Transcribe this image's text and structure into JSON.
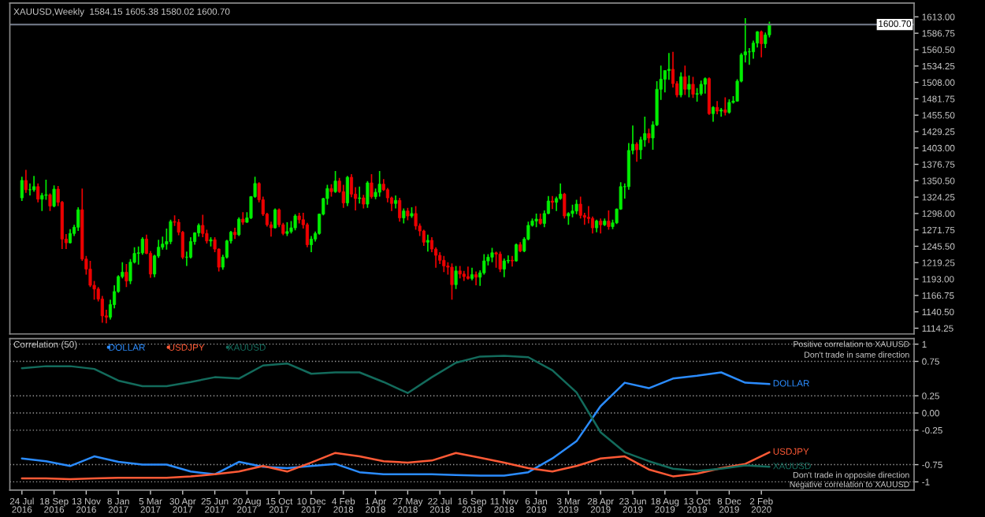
{
  "chart_data": [
    {
      "type": "candlestick",
      "title": "XAUUSD,Weekly  1584.15 1605.38 1580.02 1600.70",
      "colors": [
        "#00ee00",
        "#ee0000",
        "#00ee00",
        "#00ee00",
        "#ee0000",
        "#00ee00",
        "#00ee00",
        "#ee0000",
        "#00ee00",
        "#ee0000",
        "#ee0000",
        "#ee0000",
        "#00ee00",
        "#00ee00",
        "#00ee00",
        "#ee0000",
        "#ee0000",
        "#ee0000",
        "#ee0000",
        "#ee0000",
        "#ee0000",
        "#ee0000",
        "#00ee00",
        "#00ee00",
        "#00ee00",
        "#00ee00",
        "#ee0000",
        "#00ee00",
        "#00ee00",
        "#00ee00",
        "#00ee00",
        "#ee0000",
        "#ee0000",
        "#00ee00",
        "#00ee00",
        "#00ee00",
        "#00ee00",
        "#00ee00",
        "#ee0000",
        "#ee0000",
        "#ee0000",
        "#00ee00",
        "#00ee00",
        "#00ee00",
        "#00ee00",
        "#ee0000",
        "#ee0000",
        "#00ee00",
        "#ee0000",
        "#ee0000",
        "#00ee00",
        "#00ee00",
        "#00ee00",
        "#ee0000",
        "#00ee00",
        "#ee0000",
        "#00ee00",
        "#00ee00",
        "#00ee00",
        "#ee0000",
        "#ee0000",
        "#ee0000",
        "#ee0000",
        "#00ee00",
        "#ee0000",
        "#ee0000",
        "#00ee00",
        "#00ee00",
        "#00ee00",
        "#ee0000",
        "#ee0000",
        "#ee0000",
        "#00ee00",
        "#00ee00",
        "#00ee00",
        "#00ee00",
        "#00ee00",
        "#ee0000",
        "#00ee00",
        "#ee0000",
        "#ee0000",
        "#00ee00",
        "#ee0000",
        "#ee0000",
        "#00ee00",
        "#ee0000",
        "#00ee00",
        "#ee0000",
        "#00ee00",
        "#00ee00",
        "#ee0000",
        "#ee0000",
        "#ee0000",
        "#00ee00",
        "#ee0000",
        "#00ee00",
        "#ee0000",
        "#00ee00",
        "#ee0000",
        "#ee0000",
        "#ee0000",
        "#00ee00",
        "#ee0000",
        "#ee0000",
        "#ee0000",
        "#ee0000",
        "#ee0000",
        "#ee0000",
        "#00ee00",
        "#ee0000",
        "#ee0000",
        "#ee0000",
        "#00ee00",
        "#ee0000",
        "#00ee00",
        "#00ee00",
        "#00ee00",
        "#00ee00",
        "#ee0000",
        "#ee0000",
        "#00ee00",
        "#00ee00",
        "#ee0000",
        "#00ee00",
        "#ee0000",
        "#00ee00",
        "#00ee00",
        "#00ee00",
        "#00ee00",
        "#ee0000",
        "#00ee00",
        "#00ee00",
        "#ee0000",
        "#00ee00",
        "#00ee00",
        "#ee0000",
        "#00ee00",
        "#00ee00",
        "#00ee00",
        "#ee0000",
        "#ee0000",
        "#ee0000",
        "#ee0000",
        "#00ee00",
        "#ee0000",
        "#00ee00",
        "#ee0000",
        "#00ee00",
        "#00ee00",
        "#00ee00",
        "#00ee00",
        "#00ee00",
        "#00ee00",
        "#ee0000",
        "#00ee00",
        "#00ee00",
        "#ee0000",
        "#00ee00",
        "#00ee00",
        "#00ee00",
        "#00ee00",
        "#00ee00",
        "#ee0000",
        "#ee0000",
        "#00ee00",
        "#ee0000",
        "#00ee00",
        "#ee0000",
        "#00ee00",
        "#00ee00",
        "#00ee00",
        "#ee0000",
        "#00ee00",
        "#ee0000",
        "#00ee00",
        "#ee0000",
        "#00ee00",
        "#00ee00",
        "#00ee00",
        "#00ee00",
        "#00ee00",
        "#00ee00",
        "#00ee00",
        "#00ee00",
        "#ee0000",
        "#00ee00",
        "#00ee00"
      ],
      "xlim": [
        "2016-07-03",
        "2020-10-25"
      ],
      "ylim": [
        1105,
        1635
      ],
      "yticks": [
        {
          "value": 1613,
          "label": "1613.00"
        },
        {
          "value": 1586.75,
          "label": "1586.75"
        },
        {
          "value": 1560.5,
          "label": "1560.50"
        },
        {
          "value": 1534.25,
          "label": "1534.25"
        },
        {
          "value": 1508,
          "label": "1508.00"
        },
        {
          "value": 1481.75,
          "label": "1481.75"
        },
        {
          "value": 1455.5,
          "label": "1455.50"
        },
        {
          "value": 1429.25,
          "label": "1429.25"
        },
        {
          "value": 1403,
          "label": "1403.00"
        },
        {
          "value": 1376.75,
          "label": "1376.75"
        },
        {
          "value": 1350.5,
          "label": "1350.50"
        },
        {
          "value": 1324.25,
          "label": "1324.25"
        },
        {
          "value": 1298,
          "label": "1298.00"
        },
        {
          "value": 1271.75,
          "label": "1271.75"
        },
        {
          "value": 1245.5,
          "label": "1245.50"
        },
        {
          "value": 1219.25,
          "label": "1219.25"
        },
        {
          "value": 1193,
          "label": "1193.00"
        },
        {
          "value": 1166.75,
          "label": "1166.75"
        },
        {
          "value": 1140.5,
          "label": "1140.50"
        },
        {
          "value": 1114.25,
          "label": "1114.25"
        }
      ],
      "tick_labels": "y",
      "grid": false,
      "ref_lines": [
        {
          "axis": "y",
          "value": 1600.7,
          "label": "1600.70",
          "color": "#6b7280"
        }
      ],
      "x": [
        "2016-07-24",
        "2016-07-31",
        "2016-08-07",
        "2016-08-14",
        "2016-08-21",
        "2016-08-28",
        "2016-09-04",
        "2016-09-11",
        "2016-09-18",
        "2016-09-25",
        "2016-10-02",
        "2016-10-09",
        "2016-10-16",
        "2016-10-23",
        "2016-10-30",
        "2016-11-06",
        "2016-11-13",
        "2016-11-20",
        "2016-11-27",
        "2016-12-04",
        "2016-12-11",
        "2016-12-18",
        "2016-12-25",
        "2017-01-01",
        "2017-01-08",
        "2017-01-15",
        "2017-01-22",
        "2017-01-29",
        "2017-02-05",
        "2017-02-12",
        "2017-02-19",
        "2017-02-26",
        "2017-03-05",
        "2017-03-12",
        "2017-03-19",
        "2017-03-26",
        "2017-04-02",
        "2017-04-09",
        "2017-04-16",
        "2017-04-23",
        "2017-04-30",
        "2017-05-07",
        "2017-05-14",
        "2017-05-21",
        "2017-05-28",
        "2017-06-04",
        "2017-06-11",
        "2017-06-18",
        "2017-06-25",
        "2017-07-02",
        "2017-07-09",
        "2017-07-16",
        "2017-07-23",
        "2017-07-30",
        "2017-08-06",
        "2017-08-13",
        "2017-08-20",
        "2017-08-27",
        "2017-09-03",
        "2017-09-10",
        "2017-09-17",
        "2017-09-24",
        "2017-10-01",
        "2017-10-08",
        "2017-10-15",
        "2017-10-22",
        "2017-10-29",
        "2017-11-05",
        "2017-11-12",
        "2017-11-19",
        "2017-11-26",
        "2017-12-03",
        "2017-12-10",
        "2017-12-17",
        "2017-12-24",
        "2017-12-31",
        "2018-01-07",
        "2018-01-14",
        "2018-01-21",
        "2018-01-28",
        "2018-02-04",
        "2018-02-11",
        "2018-02-18",
        "2018-02-25",
        "2018-03-04",
        "2018-03-11",
        "2018-03-18",
        "2018-03-25",
        "2018-04-01",
        "2018-04-08",
        "2018-04-15",
        "2018-04-22",
        "2018-04-29",
        "2018-05-06",
        "2018-05-13",
        "2018-05-20",
        "2018-05-27",
        "2018-06-03",
        "2018-06-10",
        "2018-06-17",
        "2018-06-24",
        "2018-07-01",
        "2018-07-08",
        "2018-07-15",
        "2018-07-22",
        "2018-07-29",
        "2018-08-05",
        "2018-08-12",
        "2018-08-19",
        "2018-08-26",
        "2018-09-02",
        "2018-09-09",
        "2018-09-16",
        "2018-09-23",
        "2018-09-30",
        "2018-10-07",
        "2018-10-14",
        "2018-10-21",
        "2018-10-28",
        "2018-11-04",
        "2018-11-11",
        "2018-11-18",
        "2018-11-25",
        "2018-12-02",
        "2018-12-09",
        "2018-12-16",
        "2018-12-23",
        "2018-12-30",
        "2019-01-06",
        "2019-01-13",
        "2019-01-20",
        "2019-01-27",
        "2019-02-03",
        "2019-02-10",
        "2019-02-17",
        "2019-02-24",
        "2019-03-03",
        "2019-03-10",
        "2019-03-17",
        "2019-03-24",
        "2019-03-31",
        "2019-04-07",
        "2019-04-14",
        "2019-04-21",
        "2019-04-28",
        "2019-05-05",
        "2019-05-12",
        "2019-05-19",
        "2019-05-26",
        "2019-06-02",
        "2019-06-09",
        "2019-06-16",
        "2019-06-23",
        "2019-06-30",
        "2019-07-07",
        "2019-07-14",
        "2019-07-21",
        "2019-07-28",
        "2019-08-04",
        "2019-08-11",
        "2019-08-18",
        "2019-08-25",
        "2019-09-01",
        "2019-09-08",
        "2019-09-15",
        "2019-09-22",
        "2019-09-29",
        "2019-10-06",
        "2019-10-13",
        "2019-10-20",
        "2019-10-27",
        "2019-11-03",
        "2019-11-10",
        "2019-11-17",
        "2019-11-24",
        "2019-12-01",
        "2019-12-08",
        "2019-12-15",
        "2019-12-22",
        "2019-12-29",
        "2020-01-05",
        "2020-01-12",
        "2020-01-19",
        "2020-01-26",
        "2020-02-02",
        "2020-02-09",
        "2020-02-16"
      ],
      "ohlc": [
        [
          1323,
          1357,
          1318,
          1351
        ],
        [
          1351,
          1368,
          1331,
          1336
        ],
        [
          1336,
          1346,
          1327,
          1336
        ],
        [
          1336,
          1358,
          1333,
          1341
        ],
        [
          1341,
          1346,
          1316,
          1321
        ],
        [
          1321,
          1331,
          1302,
          1327
        ],
        [
          1327,
          1352,
          1320,
          1328
        ],
        [
          1328,
          1330,
          1302,
          1310
        ],
        [
          1310,
          1343,
          1308,
          1337
        ],
        [
          1337,
          1342,
          1310,
          1316
        ],
        [
          1316,
          1318,
          1241,
          1257
        ],
        [
          1257,
          1265,
          1241,
          1251
        ],
        [
          1251,
          1273,
          1250,
          1266
        ],
        [
          1266,
          1280,
          1262,
          1276
        ],
        [
          1276,
          1308,
          1270,
          1304
        ],
        [
          1304,
          1338,
          1222,
          1225
        ],
        [
          1225,
          1230,
          1200,
          1209
        ],
        [
          1209,
          1222,
          1180,
          1183
        ],
        [
          1183,
          1190,
          1160,
          1177
        ],
        [
          1177,
          1180,
          1157,
          1161
        ],
        [
          1161,
          1166,
          1123,
          1134
        ],
        [
          1134,
          1144,
          1122,
          1132
        ],
        [
          1132,
          1160,
          1128,
          1152
        ],
        [
          1152,
          1183,
          1146,
          1173
        ],
        [
          1173,
          1199,
          1171,
          1197
        ],
        [
          1197,
          1220,
          1194,
          1204
        ],
        [
          1204,
          1217,
          1180,
          1190
        ],
        [
          1190,
          1225,
          1185,
          1220
        ],
        [
          1220,
          1244,
          1218,
          1234
        ],
        [
          1234,
          1245,
          1216,
          1235
        ],
        [
          1235,
          1260,
          1232,
          1257
        ],
        [
          1257,
          1264,
          1233,
          1234
        ],
        [
          1234,
          1238,
          1195,
          1201
        ],
        [
          1201,
          1232,
          1196,
          1230
        ],
        [
          1230,
          1256,
          1227,
          1244
        ],
        [
          1244,
          1261,
          1240,
          1249
        ],
        [
          1249,
          1274,
          1240,
          1253
        ],
        [
          1253,
          1288,
          1249,
          1285
        ],
        [
          1285,
          1295,
          1278,
          1284
        ],
        [
          1284,
          1289,
          1263,
          1268
        ],
        [
          1268,
          1270,
          1225,
          1228
        ],
        [
          1228,
          1237,
          1214,
          1228
        ],
        [
          1228,
          1260,
          1226,
          1253
        ],
        [
          1253,
          1268,
          1248,
          1267
        ],
        [
          1267,
          1282,
          1261,
          1279
        ],
        [
          1279,
          1296,
          1260,
          1266
        ],
        [
          1266,
          1272,
          1250,
          1254
        ],
        [
          1254,
          1260,
          1245,
          1256
        ],
        [
          1256,
          1260,
          1236,
          1241
        ],
        [
          1241,
          1242,
          1205,
          1212
        ],
        [
          1212,
          1232,
          1208,
          1228
        ],
        [
          1228,
          1256,
          1226,
          1254
        ],
        [
          1254,
          1270,
          1250,
          1268
        ],
        [
          1268,
          1275,
          1257,
          1264
        ],
        [
          1264,
          1292,
          1262,
          1289
        ],
        [
          1289,
          1300,
          1280,
          1284
        ],
        [
          1284,
          1300,
          1283,
          1291
        ],
        [
          1291,
          1326,
          1289,
          1325
        ],
        [
          1325,
          1357,
          1323,
          1346
        ],
        [
          1346,
          1348,
          1316,
          1320
        ],
        [
          1320,
          1325,
          1294,
          1297
        ],
        [
          1297,
          1299,
          1277,
          1280
        ],
        [
          1280,
          1285,
          1261,
          1275
        ],
        [
          1275,
          1306,
          1274,
          1304
        ],
        [
          1304,
          1306,
          1276,
          1280
        ],
        [
          1280,
          1283,
          1263,
          1266
        ],
        [
          1266,
          1284,
          1262,
          1269
        ],
        [
          1269,
          1286,
          1266,
          1275
        ],
        [
          1275,
          1297,
          1271,
          1294
        ],
        [
          1294,
          1299,
          1282,
          1288
        ],
        [
          1288,
          1299,
          1274,
          1280
        ],
        [
          1280,
          1283,
          1244,
          1248
        ],
        [
          1248,
          1262,
          1236,
          1257
        ],
        [
          1257,
          1269,
          1253,
          1266
        ],
        [
          1266,
          1298,
          1264,
          1297
        ],
        [
          1297,
          1323,
          1295,
          1322
        ],
        [
          1322,
          1344,
          1312,
          1338
        ],
        [
          1338,
          1345,
          1325,
          1333
        ],
        [
          1333,
          1366,
          1331,
          1350
        ],
        [
          1350,
          1355,
          1331,
          1333
        ],
        [
          1333,
          1344,
          1307,
          1315
        ],
        [
          1315,
          1358,
          1310,
          1356
        ],
        [
          1356,
          1361,
          1324,
          1329
        ],
        [
          1329,
          1340,
          1303,
          1322
        ],
        [
          1322,
          1341,
          1314,
          1323
        ],
        [
          1323,
          1328,
          1306,
          1313
        ],
        [
          1313,
          1350,
          1307,
          1347
        ],
        [
          1347,
          1361,
          1322,
          1325
        ],
        [
          1325,
          1338,
          1321,
          1332
        ],
        [
          1332,
          1366,
          1325,
          1345
        ],
        [
          1345,
          1353,
          1334,
          1336
        ],
        [
          1336,
          1339,
          1316,
          1323
        ],
        [
          1323,
          1325,
          1302,
          1314
        ],
        [
          1314,
          1327,
          1306,
          1319
        ],
        [
          1319,
          1323,
          1285,
          1291
        ],
        [
          1291,
          1306,
          1282,
          1302
        ],
        [
          1302,
          1307,
          1287,
          1294
        ],
        [
          1294,
          1308,
          1291,
          1298
        ],
        [
          1298,
          1310,
          1272,
          1278
        ],
        [
          1278,
          1282,
          1262,
          1270
        ],
        [
          1270,
          1272,
          1246,
          1252
        ],
        [
          1252,
          1264,
          1237,
          1255
        ],
        [
          1255,
          1260,
          1236,
          1241
        ],
        [
          1241,
          1244,
          1211,
          1231
        ],
        [
          1231,
          1236,
          1217,
          1223
        ],
        [
          1223,
          1230,
          1204,
          1214
        ],
        [
          1214,
          1220,
          1200,
          1212
        ],
        [
          1212,
          1218,
          1160,
          1184
        ],
        [
          1184,
          1214,
          1177,
          1206
        ],
        [
          1206,
          1214,
          1194,
          1201
        ],
        [
          1201,
          1206,
          1190,
          1197
        ],
        [
          1197,
          1213,
          1192,
          1194
        ],
        [
          1194,
          1211,
          1191,
          1200
        ],
        [
          1200,
          1205,
          1183,
          1196
        ],
        [
          1196,
          1207,
          1182,
          1203
        ],
        [
          1203,
          1233,
          1200,
          1222
        ],
        [
          1222,
          1233,
          1215,
          1228
        ],
        [
          1228,
          1243,
          1220,
          1235
        ],
        [
          1235,
          1237,
          1211,
          1233
        ],
        [
          1233,
          1237,
          1204,
          1209
        ],
        [
          1209,
          1226,
          1196,
          1222
        ],
        [
          1222,
          1231,
          1218,
          1223
        ],
        [
          1223,
          1230,
          1213,
          1222
        ],
        [
          1222,
          1250,
          1221,
          1248
        ],
        [
          1248,
          1252,
          1236,
          1238
        ],
        [
          1238,
          1260,
          1236,
          1257
        ],
        [
          1257,
          1285,
          1255,
          1279
        ],
        [
          1279,
          1290,
          1277,
          1286
        ],
        [
          1286,
          1298,
          1276,
          1289
        ],
        [
          1289,
          1298,
          1280,
          1282
        ],
        [
          1282,
          1303,
          1276,
          1298
        ],
        [
          1298,
          1326,
          1297,
          1318
        ],
        [
          1318,
          1326,
          1305,
          1316
        ],
        [
          1316,
          1325,
          1302,
          1322
        ],
        [
          1322,
          1346,
          1320,
          1329
        ],
        [
          1329,
          1331,
          1290,
          1294
        ],
        [
          1294,
          1300,
          1280,
          1298
        ],
        [
          1298,
          1312,
          1292,
          1302
        ],
        [
          1302,
          1320,
          1297,
          1313
        ],
        [
          1313,
          1325,
          1290,
          1295
        ],
        [
          1295,
          1299,
          1280,
          1292
        ],
        [
          1292,
          1310,
          1282,
          1290
        ],
        [
          1290,
          1293,
          1266,
          1275
        ],
        [
          1275,
          1288,
          1268,
          1286
        ],
        [
          1286,
          1290,
          1266,
          1280
        ],
        [
          1280,
          1290,
          1278,
          1286
        ],
        [
          1286,
          1303,
          1272,
          1277
        ],
        [
          1277,
          1288,
          1273,
          1283
        ],
        [
          1283,
          1306,
          1281,
          1305
        ],
        [
          1305,
          1348,
          1304,
          1341
        ],
        [
          1341,
          1346,
          1322,
          1341
        ],
        [
          1341,
          1411,
          1336,
          1399
        ],
        [
          1399,
          1439,
          1393,
          1409
        ],
        [
          1409,
          1412,
          1381,
          1400
        ],
        [
          1400,
          1421,
          1385,
          1416
        ],
        [
          1416,
          1453,
          1405,
          1426
        ],
        [
          1426,
          1434,
          1411,
          1419
        ],
        [
          1419,
          1446,
          1400,
          1440
        ],
        [
          1440,
          1510,
          1438,
          1497
        ],
        [
          1497,
          1535,
          1480,
          1513
        ],
        [
          1513,
          1527,
          1492,
          1527
        ],
        [
          1527,
          1555,
          1512,
          1529
        ],
        [
          1529,
          1557,
          1500,
          1506
        ],
        [
          1506,
          1510,
          1484,
          1488
        ],
        [
          1488,
          1524,
          1484,
          1517
        ],
        [
          1517,
          1535,
          1488,
          1497
        ],
        [
          1497,
          1519,
          1484,
          1505
        ],
        [
          1505,
          1517,
          1483,
          1489
        ],
        [
          1489,
          1499,
          1477,
          1490
        ],
        [
          1490,
          1511,
          1487,
          1505
        ],
        [
          1505,
          1516,
          1490,
          1514
        ],
        [
          1514,
          1516,
          1456,
          1458
        ],
        [
          1458,
          1470,
          1445,
          1468
        ],
        [
          1468,
          1478,
          1457,
          1462
        ],
        [
          1462,
          1467,
          1453,
          1464
        ],
        [
          1464,
          1484,
          1455,
          1460
        ],
        [
          1460,
          1481,
          1458,
          1476
        ],
        [
          1476,
          1486,
          1474,
          1478
        ],
        [
          1478,
          1513,
          1477,
          1510
        ],
        [
          1510,
          1555,
          1508,
          1552
        ],
        [
          1552,
          1611,
          1540,
          1557
        ],
        [
          1557,
          1563,
          1536,
          1557
        ],
        [
          1557,
          1575,
          1546,
          1571
        ],
        [
          1571,
          1590,
          1564,
          1589
        ],
        [
          1589,
          1591,
          1548,
          1570
        ],
        [
          1570,
          1588,
          1563,
          1584
        ],
        [
          1584.15,
          1605.38,
          1580.02,
          1600.7
        ]
      ]
    },
    {
      "type": "line",
      "title": "Correlation (50)",
      "xlim": [
        "2016-07-03",
        "2020-10-25"
      ],
      "ylim": [
        -1.12,
        1.08
      ],
      "yticks": [
        1,
        0.75,
        0.25,
        {
          "value": 0,
          "label": "0.00"
        },
        -0.25,
        -0.75,
        -1
      ],
      "xticks": [
        {
          "value": "2016-07-24",
          "label": "24 Jul 2016"
        },
        {
          "value": "2016-09-18",
          "label": "18 Sep 2016"
        },
        {
          "value": "2016-11-13",
          "label": "13 Nov 2016"
        },
        {
          "value": "2017-01-08",
          "label": "8 Jan 2017"
        },
        {
          "value": "2017-03-05",
          "label": "5 Mar 2017"
        },
        {
          "value": "2017-04-30",
          "label": "30 Apr 2017"
        },
        {
          "value": "2017-06-25",
          "label": "25 Jun 2017"
        },
        {
          "value": "2017-08-20",
          "label": "20 Aug 2017"
        },
        {
          "value": "2017-10-15",
          "label": "15 Oct 2017"
        },
        {
          "value": "2017-12-10",
          "label": "10 Dec 2017"
        },
        {
          "value": "2018-02-04",
          "label": "4 Feb 2018"
        },
        {
          "value": "2018-04-01",
          "label": "1 Apr 2018"
        },
        {
          "value": "2018-05-27",
          "label": "27 May 2018"
        },
        {
          "value": "2018-07-22",
          "label": "22 Jul 2018"
        },
        {
          "value": "2018-09-16",
          "label": "16 Sep 2018"
        },
        {
          "value": "2018-11-11",
          "label": "11 Nov 2018"
        },
        {
          "value": "2019-01-06",
          "label": "6 Jan 2019"
        },
        {
          "value": "2019-03-03",
          "label": "3 Mar 2019"
        },
        {
          "value": "2019-04-28",
          "label": "28 Apr 2019"
        },
        {
          "value": "2019-06-23",
          "label": "23 Jun 2019"
        },
        {
          "value": "2019-08-18",
          "label": "18 Aug 2019"
        },
        {
          "value": "2019-10-13",
          "label": "13 Oct 2019"
        },
        {
          "value": "2019-12-08",
          "label": "8 Dec 2019"
        },
        {
          "value": "2020-02-02",
          "label": "2 Feb 2020"
        }
      ],
      "grid": "y",
      "legend": "top left",
      "line_style": "solid",
      "marker": "none",
      "annotations": [
        "Positive correlation to XAUUSD",
        "Don't trade in same direction",
        "Don't trade in opposite direction",
        "Negative correlation to XAUUSD"
      ],
      "x": [
        "2016-07-24",
        "2016-09-04",
        "2016-10-16",
        "2016-11-27",
        "2017-01-08",
        "2017-02-19",
        "2017-04-02",
        "2017-05-14",
        "2017-06-25",
        "2017-08-06",
        "2017-09-17",
        "2017-10-29",
        "2017-12-10",
        "2018-01-21",
        "2018-03-04",
        "2018-04-15",
        "2018-05-27",
        "2018-07-08",
        "2018-08-19",
        "2018-09-30",
        "2018-11-11",
        "2018-12-23",
        "2019-02-03",
        "2019-03-17",
        "2019-04-28",
        "2019-06-09",
        "2019-07-21",
        "2019-09-01",
        "2019-10-13",
        "2019-11-24",
        "2020-01-05",
        "2020-02-16"
      ],
      "series": [
        {
          "name": "DOLLAR",
          "color": "#2b8cff",
          "values": [
            -0.66,
            -0.7,
            -0.77,
            -0.63,
            -0.71,
            -0.75,
            -0.75,
            -0.85,
            -0.89,
            -0.71,
            -0.78,
            -0.8,
            -0.77,
            -0.74,
            -0.86,
            -0.89,
            -0.89,
            -0.89,
            -0.9,
            -0.91,
            -0.91,
            -0.86,
            -0.66,
            -0.41,
            0.1,
            0.44,
            0.36,
            0.5,
            0.54,
            0.59,
            0.44,
            0.42
          ]
        },
        {
          "name": "USDJPY",
          "color": "#ff5a36",
          "values": [
            -0.95,
            -0.95,
            -0.96,
            -0.95,
            -0.94,
            -0.94,
            -0.94,
            -0.92,
            -0.89,
            -0.85,
            -0.77,
            -0.85,
            -0.72,
            -0.58,
            -0.63,
            -0.7,
            -0.72,
            -0.69,
            -0.58,
            -0.65,
            -0.72,
            -0.8,
            -0.85,
            -0.77,
            -0.66,
            -0.63,
            -0.82,
            -0.92,
            -0.88,
            -0.8,
            -0.74,
            -0.57
          ]
        },
        {
          "name": "XAUUSD",
          "color": "#136b5c",
          "values": [
            0.65,
            0.68,
            0.68,
            0.64,
            0.47,
            0.39,
            0.39,
            0.45,
            0.52,
            0.5,
            0.69,
            0.72,
            0.57,
            0.59,
            0.59,
            0.45,
            0.29,
            0.52,
            0.73,
            0.82,
            0.83,
            0.81,
            0.62,
            0.3,
            -0.28,
            -0.57,
            -0.7,
            -0.81,
            -0.84,
            -0.81,
            -0.76,
            -0.78
          ]
        }
      ]
    }
  ]
}
